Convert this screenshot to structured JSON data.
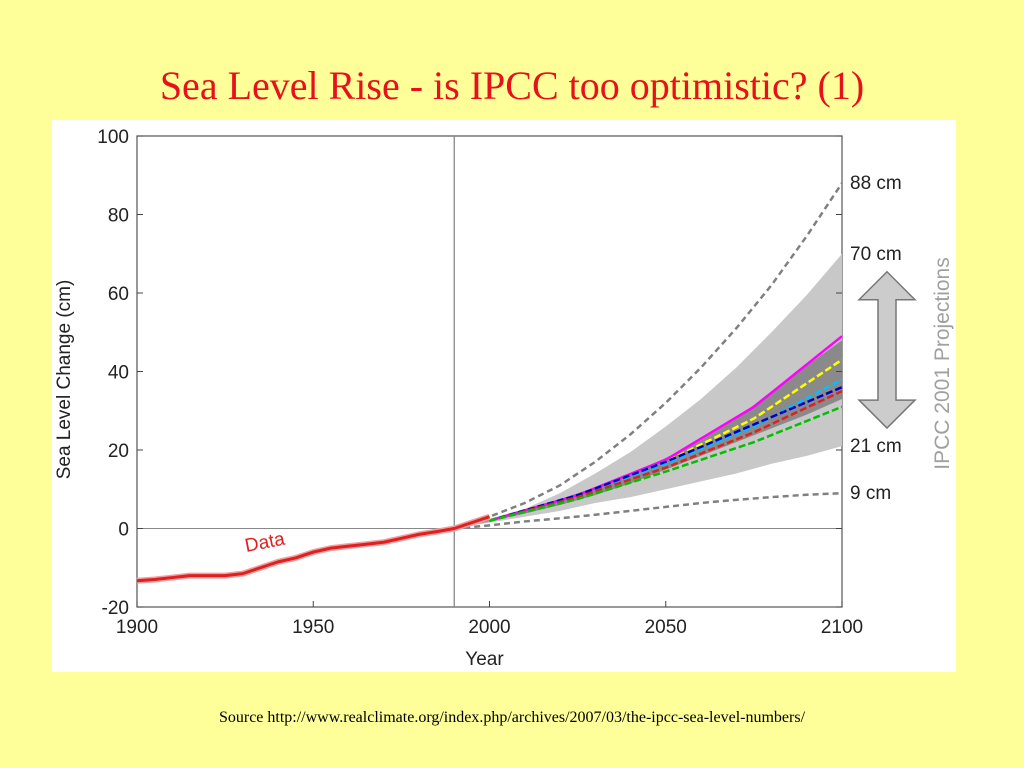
{
  "slide": {
    "title": "Sea Level Rise - is IPCC too optimistic? (1)",
    "source": "Source http://www.realclimate.org/index.php/archives/2007/03/the-ipcc-sea-level-numbers/"
  },
  "colors": {
    "background": "#ffff99",
    "title": "#e8101a",
    "data_line": "#e02020",
    "gray_band": "#c8c8c8",
    "dark_band": "#8a8a8a",
    "dashed_gray": "#808080",
    "projection_label": "#a0a0a0"
  },
  "chart_data": {
    "type": "line",
    "xlabel": "Year",
    "ylabel": "Sea Level Change (cm)",
    "xlim": [
      1900,
      2100
    ],
    "ylim": [
      -20,
      100
    ],
    "xticks": [
      1900,
      1950,
      2000,
      2050,
      2100
    ],
    "yticks": [
      -20,
      0,
      20,
      40,
      60,
      80,
      100
    ],
    "vertical_line_x": 1990,
    "observed": {
      "label": "Data",
      "color": "#e02020",
      "x": [
        1900,
        1905,
        1910,
        1915,
        1920,
        1925,
        1930,
        1935,
        1940,
        1945,
        1950,
        1955,
        1960,
        1965,
        1970,
        1975,
        1980,
        1985,
        1990,
        1995,
        2000
      ],
      "y": [
        -13.3,
        -13,
        -12.5,
        -12,
        -12,
        -12,
        -11.5,
        -10,
        -8.5,
        -7.5,
        -6,
        -5,
        -4.5,
        -4,
        -3.5,
        -2.5,
        -1.5,
        -0.8,
        0,
        1.5,
        3
      ]
    },
    "bands": [
      {
        "name": "outer",
        "color": "#c8c8c8",
        "x": [
          1990,
          2000,
          2010,
          2020,
          2030,
          2040,
          2050,
          2060,
          2070,
          2080,
          2090,
          2100
        ],
        "lower": [
          0,
          1.5,
          3,
          4.5,
          6.5,
          8,
          10,
          12,
          14,
          16.5,
          18.5,
          21
        ],
        "upper": [
          0,
          2.5,
          5,
          9,
          14,
          19.5,
          26,
          33,
          41,
          50,
          59.5,
          70
        ]
      },
      {
        "name": "inner",
        "color": "#8a8a8a",
        "x": [
          1990,
          2000,
          2010,
          2020,
          2030,
          2040,
          2050,
          2060,
          2070,
          2080,
          2090,
          2100
        ],
        "lower": [
          0,
          1.8,
          3.8,
          6,
          8.5,
          11.5,
          15,
          18.5,
          22,
          25.5,
          29,
          33
        ],
        "upper": [
          0,
          2.2,
          4.5,
          7.5,
          10.5,
          14,
          18,
          22.5,
          28,
          35,
          41.5,
          48
        ]
      }
    ],
    "envelope": [
      {
        "name": "88 cm",
        "x": [
          1990,
          2000,
          2010,
          2020,
          2030,
          2040,
          2050,
          2060,
          2070,
          2080,
          2090,
          2100
        ],
        "y": [
          0,
          3,
          6.5,
          11,
          17,
          24,
          32,
          41,
          51,
          62,
          74.5,
          88
        ]
      },
      {
        "name": "9 cm",
        "x": [
          1990,
          2000,
          2010,
          2020,
          2030,
          2040,
          2050,
          2060,
          2070,
          2080,
          2090,
          2100
        ],
        "y": [
          0,
          0.8,
          1.8,
          2.6,
          3.5,
          4.5,
          5.5,
          6.5,
          7.3,
          8,
          8.6,
          9
        ]
      }
    ],
    "scenarios": [
      {
        "color": "#ff00ff",
        "dashed": false,
        "x": [
          2000,
          2025,
          2050,
          2075,
          2100
        ],
        "y": [
          2,
          8.5,
          17.5,
          31,
          49
        ]
      },
      {
        "color": "#ffff00",
        "dashed": true,
        "x": [
          2000,
          2025,
          2050,
          2075,
          2100
        ],
        "y": [
          2,
          8.5,
          17,
          28,
          43
        ]
      },
      {
        "color": "#00c0ff",
        "dashed": true,
        "x": [
          2000,
          2025,
          2050,
          2075,
          2100
        ],
        "y": [
          2,
          8.5,
          16.5,
          26,
          38
        ]
      },
      {
        "color": "#0000c0",
        "dashed": true,
        "x": [
          2000,
          2025,
          2050,
          2075,
          2100
        ],
        "y": [
          2,
          8.5,
          17,
          26.5,
          36
        ]
      },
      {
        "color": "#e02020",
        "dashed": true,
        "x": [
          2000,
          2025,
          2050,
          2075,
          2100
        ],
        "y": [
          2,
          8,
          15.5,
          24.5,
          35
        ]
      },
      {
        "color": "#00c000",
        "dashed": true,
        "x": [
          2000,
          2025,
          2050,
          2075,
          2100
        ],
        "y": [
          2,
          7.5,
          14.5,
          22,
          31
        ]
      }
    ],
    "end_labels": [
      {
        "text": "88 cm",
        "y": 88
      },
      {
        "text": "70 cm",
        "y": 70
      },
      {
        "text": "21 cm",
        "y": 21
      },
      {
        "text": "9 cm",
        "y": 9
      }
    ],
    "range_label": "IPCC 2001 Projections",
    "range_arrow": [
      21,
      70
    ]
  }
}
